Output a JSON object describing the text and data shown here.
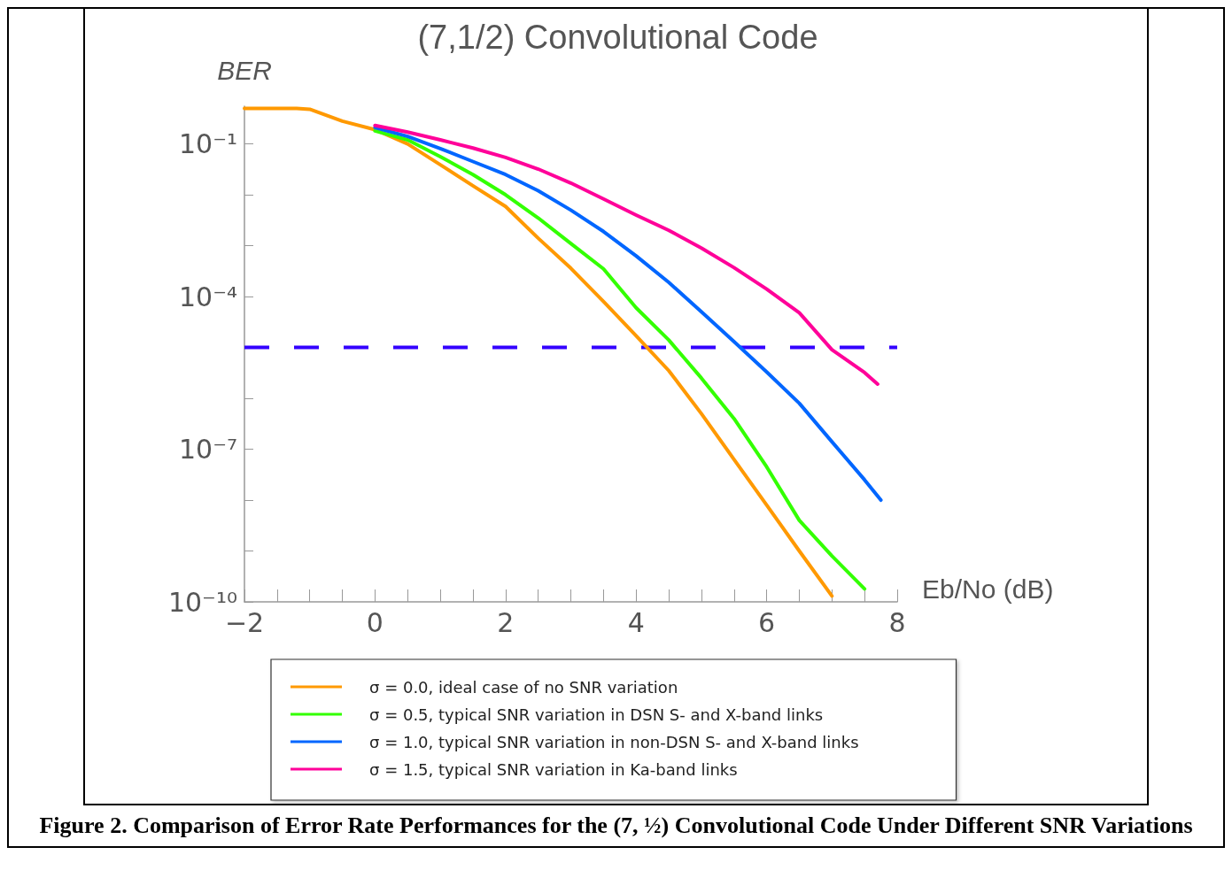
{
  "chart_data": {
    "type": "line",
    "title": "(7,1/2) Convolutional Code",
    "xlabel": "Eb/No (dB)",
    "ylabel": "BER",
    "log": "y",
    "marker": "none",
    "legend": "bottom",
    "xlim": [
      -2,
      8
    ],
    "xticks": [
      {
        "value": -2,
        "label": "−2"
      },
      0,
      2,
      4,
      6,
      8
    ],
    "ylim": [
      1e-10,
      0.55
    ],
    "yticks": [
      {
        "value": 1e-10,
        "label": "10⁻¹⁰"
      },
      {
        "value": 1e-09,
        "label": null
      },
      {
        "value": 1e-08,
        "label": null
      },
      {
        "value": 1e-07,
        "label": "10⁻⁷"
      },
      {
        "value": 1e-06,
        "label": null
      },
      {
        "value": 1e-05,
        "label": null
      },
      {
        "value": 0.0001,
        "label": "10⁻⁴"
      },
      {
        "value": 0.001,
        "label": null
      },
      {
        "value": 0.01,
        "label": null
      },
      {
        "value": 0.1,
        "label": "10⁻¹"
      }
    ],
    "ref_lines": [
      {
        "axis": "y",
        "value": 1e-05,
        "color": "#3300ff",
        "line_style": "dashed"
      }
    ],
    "series": [
      {
        "name": "σ = 0.0, ideal case of no SNR variation",
        "color": "#ff9900",
        "x": [
          -2,
          -1.2,
          -1,
          -0.5,
          0,
          0.5,
          1,
          1.5,
          2,
          2.5,
          3,
          3.5,
          4,
          4.5,
          5,
          5.5,
          6,
          6.5,
          7
        ],
        "values": [
          0.5,
          0.5,
          0.48,
          0.28,
          0.19,
          0.1,
          0.039,
          0.015,
          0.0059,
          0.0014,
          0.00036,
          8e-05,
          1.7e-05,
          3.5e-06,
          5e-07,
          6.3e-08,
          8e-09,
          1e-09,
          1.3e-10
        ]
      },
      {
        "name": "σ = 0.5, typical SNR variation in DSN S- and X-band links",
        "color": "#33ff00",
        "x": [
          0,
          0.5,
          1,
          1.5,
          2,
          2.5,
          3,
          3.5,
          4,
          4.5,
          5,
          5.5,
          6,
          6.5,
          7,
          7.5
        ],
        "values": [
          0.18,
          0.12,
          0.056,
          0.025,
          0.01,
          0.0035,
          0.0011,
          0.00035,
          6e-05,
          1.4e-05,
          2.5e-06,
          4e-07,
          4.5e-08,
          4e-09,
          8e-10,
          1.8e-10
        ]
      },
      {
        "name": "σ = 1.0, typical SNR variation in non-DSN S- and X-band links",
        "color": "#0066ff",
        "x": [
          0,
          0.5,
          1,
          1.5,
          2,
          2.5,
          3,
          3.5,
          4,
          4.5,
          5,
          5.5,
          6,
          6.5,
          7,
          7.5,
          7.75
        ],
        "values": [
          0.21,
          0.14,
          0.081,
          0.045,
          0.025,
          0.012,
          0.005,
          0.0019,
          0.00063,
          0.00019,
          5e-05,
          1.3e-05,
          3.3e-06,
          8e-07,
          1.4e-07,
          2.5e-08,
          1e-08
        ]
      },
      {
        "name": "σ = 1.5, typical SNR variation in Ka-band links",
        "color": "#ff0099",
        "x": [
          0,
          0.5,
          1,
          1.5,
          2,
          2.5,
          3,
          3.5,
          4,
          4.5,
          5,
          5.5,
          6,
          6.5,
          7,
          7.5,
          7.7
        ],
        "values": [
          0.23,
          0.17,
          0.12,
          0.083,
          0.054,
          0.032,
          0.017,
          0.0083,
          0.004,
          0.002,
          0.0009,
          0.00037,
          0.00014,
          4.8e-05,
          9e-06,
          3.2e-06,
          1.9e-06
        ]
      }
    ],
    "annotations": [
      "Figure 2. Comparison of Error Rate Performances for the (7, ½) Convolutional Code Under Different SNR Variations"
    ]
  }
}
